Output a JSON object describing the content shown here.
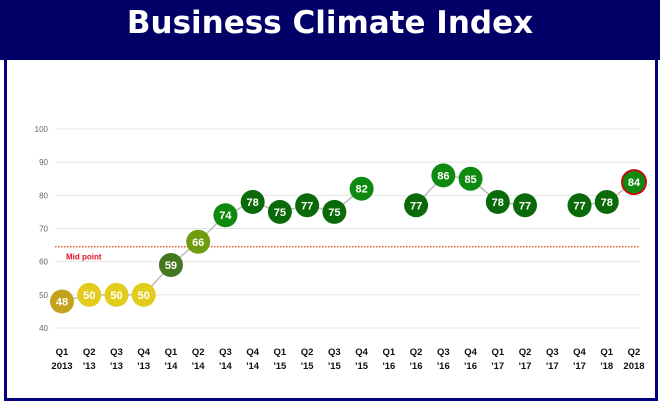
{
  "chart_data": {
    "type": "line",
    "title": "Business Climate Index",
    "xlabel": "",
    "ylabel": "",
    "ylim": [
      40,
      100
    ],
    "yticks": [
      40,
      50,
      60,
      70,
      80,
      90,
      100
    ],
    "grid": true,
    "categories": [
      [
        "Q1",
        "2013"
      ],
      [
        "Q2",
        "'13"
      ],
      [
        "Q3",
        "'13"
      ],
      [
        "Q4",
        "'13"
      ],
      [
        "Q1",
        "'14"
      ],
      [
        "Q2",
        "'14"
      ],
      [
        "Q3",
        "'14"
      ],
      [
        "Q4",
        "'14"
      ],
      [
        "Q1",
        "'15"
      ],
      [
        "Q2",
        "'15"
      ],
      [
        "Q3",
        "'15"
      ],
      [
        "Q4",
        "'15"
      ],
      [
        "Q1",
        "'16"
      ],
      [
        "Q2",
        "'16"
      ],
      [
        "Q3",
        "'16"
      ],
      [
        "Q4",
        "'16"
      ],
      [
        "Q1",
        "'17"
      ],
      [
        "Q2",
        "'17"
      ],
      [
        "Q3",
        "'17"
      ],
      [
        "Q4",
        "'17"
      ],
      [
        "Q1",
        "'18"
      ],
      [
        "Q2",
        "2018"
      ]
    ],
    "values": [
      48,
      50,
      50,
      50,
      59,
      66,
      74,
      78,
      75,
      77,
      75,
      82,
      null,
      77,
      86,
      85,
      78,
      77,
      null,
      77,
      78,
      84
    ],
    "colors": [
      "#c4a21e",
      "#e2cd1c",
      "#e2cd1c",
      "#e2cd1c",
      "#44771e",
      "#6e9c0e",
      "#0f8a10",
      "#0a6a0a",
      "#0a6a0a",
      "#0a6a0a",
      "#0a6a0a",
      "#0f8a10",
      null,
      "#0a6a0a",
      "#0f8a10",
      "#0f8a10",
      "#0a6a0a",
      "#0a6a0a",
      null,
      "#0a6a0a",
      "#0a6a0a",
      "#0f8a10"
    ],
    "highlight_index": 21,
    "highlight_border": "#c01010",
    "reference_line": {
      "value": 64.5,
      "label": "Mid point",
      "color": "#e04010"
    }
  }
}
